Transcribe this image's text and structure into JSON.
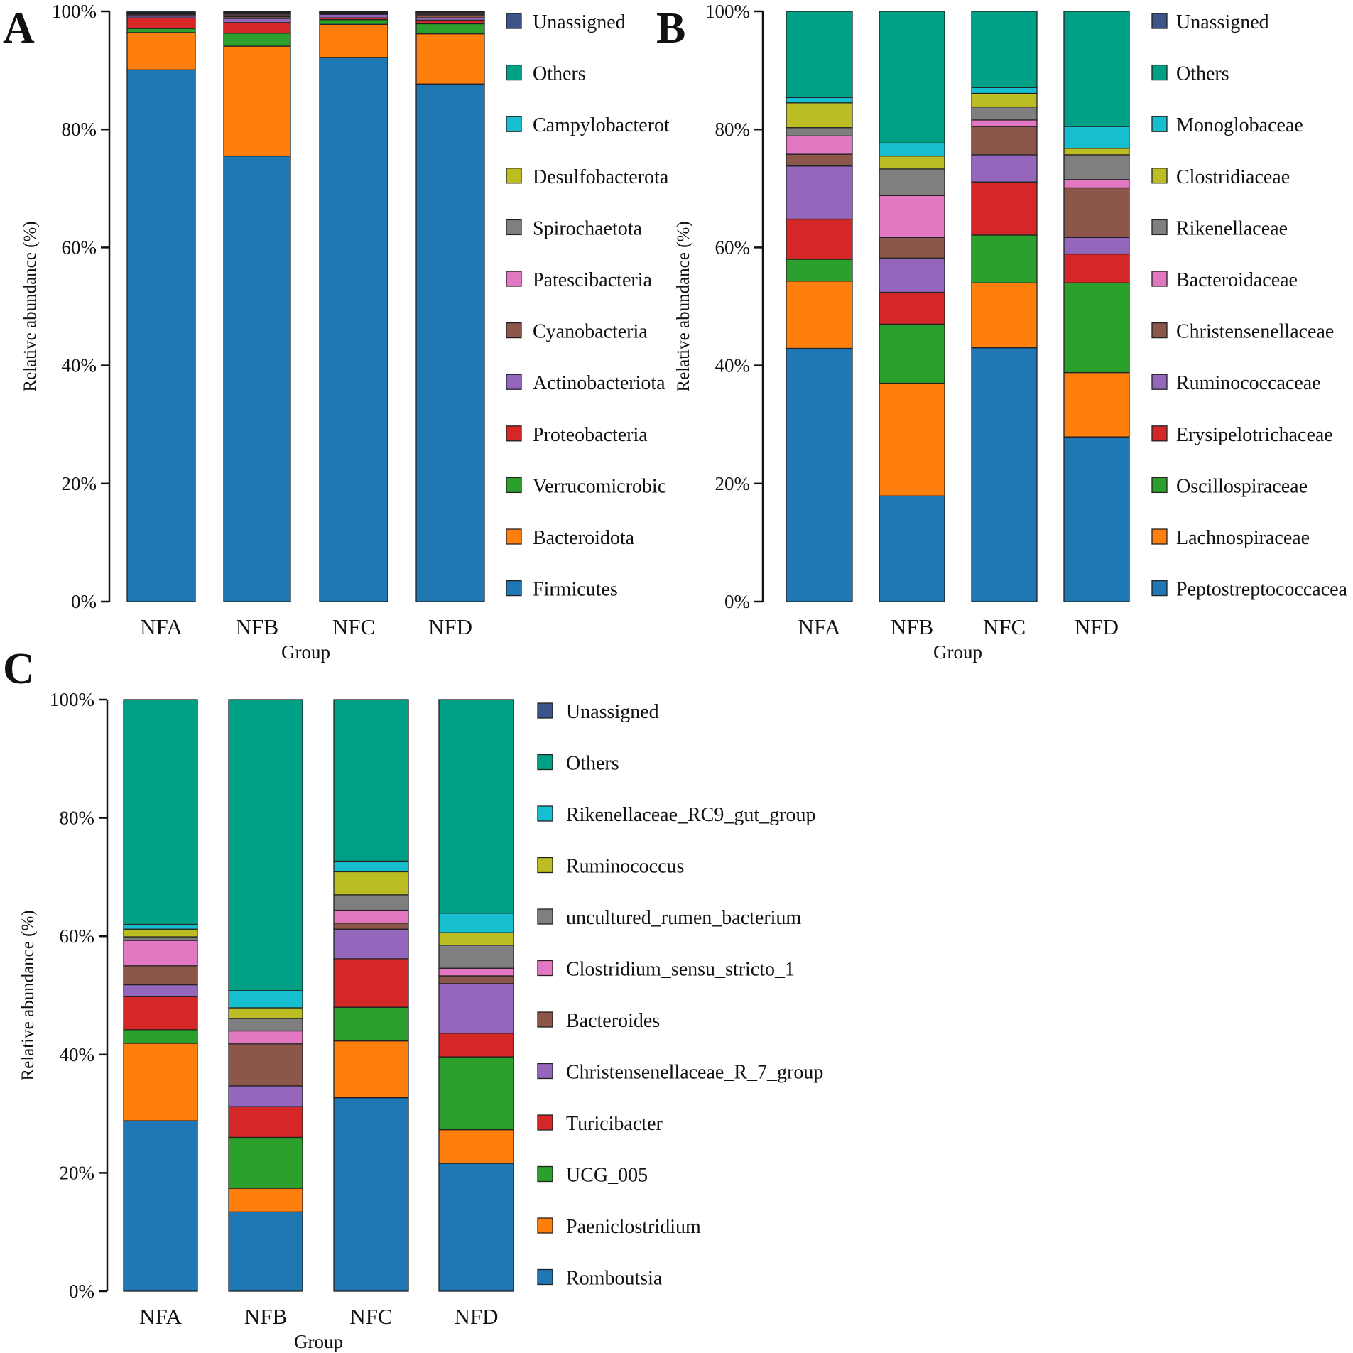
{
  "chart_data": [
    {
      "panel": "A",
      "type": "bar",
      "stacked": true,
      "title": "",
      "xlabel": "Group",
      "ylabel": "Relative abundance (%)",
      "ylim": [
        0,
        100
      ],
      "yticks": [
        "0%",
        "20%",
        "40%",
        "60%",
        "80%",
        "100%"
      ],
      "categories": [
        "NFA",
        "NFB",
        "NFC",
        "NFD"
      ],
      "legend_position": "right",
      "series": [
        {
          "name": "Firmicutes",
          "color": "#1f77b4",
          "values": [
            90.1,
            75.5,
            92.2,
            87.7
          ]
        },
        {
          "name": "Bacteroidota",
          "color": "#ff7f0e",
          "values": [
            6.3,
            18.6,
            5.6,
            8.5
          ]
        },
        {
          "name": "Verrucomicrobic",
          "color": "#2ca02c",
          "values": [
            0.7,
            2.2,
            0.8,
            1.7
          ]
        },
        {
          "name": "Proteobacteria",
          "color": "#d62728",
          "values": [
            1.8,
            1.8,
            0.3,
            0.6
          ]
        },
        {
          "name": "Actinobacteriota",
          "color": "#9467bd",
          "values": [
            0.3,
            0.7,
            0.6,
            0.4
          ]
        },
        {
          "name": "Cyanobacteria",
          "color": "#8c564b",
          "values": [
            0.1,
            0.3,
            0.1,
            0.4
          ]
        },
        {
          "name": "Patescibacteria",
          "color": "#e377c2",
          "values": [
            0.2,
            0.3,
            0.2,
            0.2
          ]
        },
        {
          "name": "Spirochaetota",
          "color": "#7f7f7f",
          "values": [
            0.1,
            0.2,
            0.05,
            0.2
          ]
        },
        {
          "name": "Desulfobacterota",
          "color": "#bcbd22",
          "values": [
            0.05,
            0.1,
            0.05,
            0.1
          ]
        },
        {
          "name": "Campylobacterot",
          "color": "#17becf",
          "values": [
            0.05,
            0.1,
            0.05,
            0.05
          ]
        },
        {
          "name": "Others",
          "color": "#00a087",
          "values": [
            0.1,
            0.1,
            0.05,
            0.05
          ]
        },
        {
          "name": "Unassigned",
          "color": "#3c5488",
          "values": [
            0.2,
            0.1,
            0.0,
            0.1
          ]
        }
      ]
    },
    {
      "panel": "B",
      "type": "bar",
      "stacked": true,
      "title": "",
      "xlabel": "Group",
      "ylabel": "Relative abundance (%)",
      "ylim": [
        0,
        100
      ],
      "yticks": [
        "0%",
        "20%",
        "40%",
        "60%",
        "80%",
        "100%"
      ],
      "categories": [
        "NFA",
        "NFB",
        "NFC",
        "NFD"
      ],
      "legend_position": "right",
      "series": [
        {
          "name": "Peptostreptococcacea",
          "color": "#1f77b4",
          "values": [
            42.9,
            17.9,
            43.0,
            27.9
          ]
        },
        {
          "name": "Lachnospiraceae",
          "color": "#ff7f0e",
          "values": [
            11.4,
            19.1,
            11.0,
            10.9
          ]
        },
        {
          "name": "Oscillospiraceae",
          "color": "#2ca02c",
          "values": [
            3.7,
            10.0,
            8.1,
            15.2
          ]
        },
        {
          "name": "Erysipelotrichaceae",
          "color": "#d62728",
          "values": [
            6.8,
            5.4,
            9.0,
            4.9
          ]
        },
        {
          "name": "Ruminococcaceae",
          "color": "#9467bd",
          "values": [
            9.0,
            5.8,
            4.6,
            2.8
          ]
        },
        {
          "name": "Christensenellaceae",
          "color": "#8c564b",
          "values": [
            2.0,
            3.5,
            4.8,
            8.4
          ]
        },
        {
          "name": "Bacteroidaceae",
          "color": "#e377c2",
          "values": [
            3.1,
            7.1,
            1.1,
            1.4
          ]
        },
        {
          "name": "Rikenellaceae",
          "color": "#7f7f7f",
          "values": [
            1.4,
            4.5,
            2.2,
            4.2
          ]
        },
        {
          "name": "Clostridiaceae",
          "color": "#bcbd22",
          "values": [
            4.2,
            2.2,
            2.3,
            1.1
          ]
        },
        {
          "name": "Monoglobaceae",
          "color": "#17becf",
          "values": [
            0.9,
            2.2,
            1.0,
            3.7
          ]
        },
        {
          "name": "Others",
          "color": "#00a087",
          "values": [
            14.6,
            22.3,
            12.9,
            19.5
          ]
        },
        {
          "name": "Unassigned",
          "color": "#3c5488",
          "values": [
            0,
            0,
            0,
            0
          ]
        }
      ]
    },
    {
      "panel": "C",
      "type": "bar",
      "stacked": true,
      "title": "",
      "xlabel": "Group",
      "ylabel": "Relative abundance (%)",
      "ylim": [
        0,
        100
      ],
      "yticks": [
        "0%",
        "20%",
        "40%",
        "60%",
        "80%",
        "100%"
      ],
      "categories": [
        "NFA",
        "NFB",
        "NFC",
        "NFD"
      ],
      "legend_position": "right",
      "series": [
        {
          "name": "Romboutsia",
          "color": "#1f77b4",
          "values": [
            28.8,
            13.4,
            32.7,
            21.6
          ]
        },
        {
          "name": "Paeniclostridium",
          "color": "#ff7f0e",
          "values": [
            13.1,
            4.0,
            9.6,
            5.7
          ]
        },
        {
          "name": "UCG_005",
          "color": "#2ca02c",
          "values": [
            2.3,
            8.6,
            5.7,
            12.3
          ]
        },
        {
          "name": "Turicibacter",
          "color": "#d62728",
          "values": [
            5.6,
            5.2,
            8.2,
            4.0
          ]
        },
        {
          "name": "Christensenellaceae_R_7_group",
          "color": "#9467bd",
          "values": [
            2.0,
            3.5,
            5.0,
            8.4
          ]
        },
        {
          "name": "Bacteroides",
          "color": "#8c564b",
          "values": [
            3.2,
            7.1,
            1.0,
            1.3
          ]
        },
        {
          "name": "Clostridium_sensu_stricto_1",
          "color": "#e377c2",
          "values": [
            4.3,
            2.2,
            2.2,
            1.3
          ]
        },
        {
          "name": "uncultured_rumen_bacterium",
          "color": "#7f7f7f",
          "values": [
            0.6,
            2.1,
            2.6,
            3.9
          ]
        },
        {
          "name": "Ruminococcus",
          "color": "#bcbd22",
          "values": [
            1.3,
            1.8,
            3.9,
            2.1
          ]
        },
        {
          "name": "Rikenellaceae_RC9_gut_group",
          "color": "#17becf",
          "values": [
            0.8,
            2.9,
            1.8,
            3.3
          ]
        },
        {
          "name": "Others",
          "color": "#00a087",
          "values": [
            38.0,
            49.2,
            27.3,
            36.1
          ]
        },
        {
          "name": "Unassigned",
          "color": "#3c5488",
          "values": [
            0,
            0,
            0,
            0
          ]
        }
      ]
    }
  ]
}
